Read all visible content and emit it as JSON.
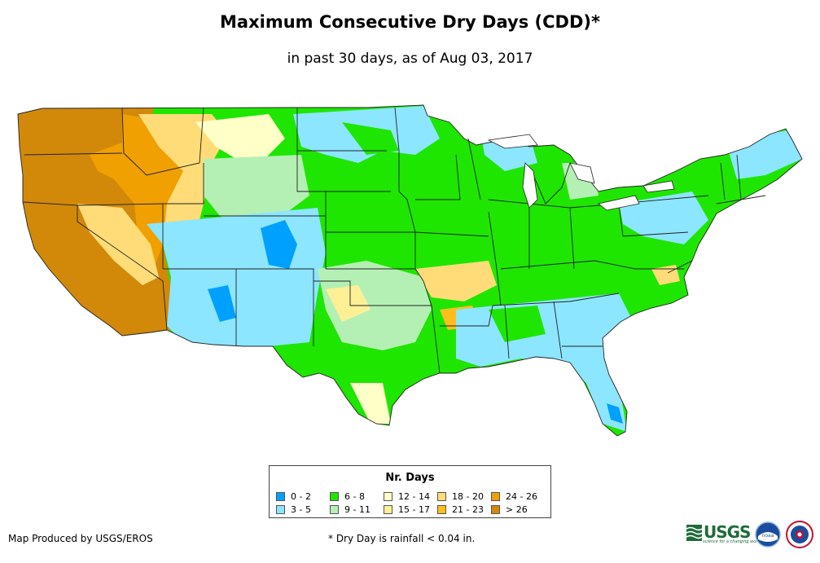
{
  "header": {
    "title": "Maximum Consecutive Dry Days (CDD)*",
    "subtitle": "in past 30 days, as of Aug 03, 2017"
  },
  "legend": {
    "title": "Nr. Days",
    "items": [
      {
        "label": "0 - 2",
        "color": "#00a0ff"
      },
      {
        "label": "3 - 5",
        "color": "#8ce6ff"
      },
      {
        "label": "6 - 8",
        "color": "#1ee600"
      },
      {
        "label": "9 - 11",
        "color": "#b4f0b4"
      },
      {
        "label": "12 - 14",
        "color": "#ffffc8"
      },
      {
        "label": "15 - 17",
        "color": "#fff096"
      },
      {
        "label": "18 - 20",
        "color": "#ffdc78"
      },
      {
        "label": "21 - 23",
        "color": "#ffbe1e"
      },
      {
        "label": "24 - 26",
        "color": "#f0a000"
      },
      {
        "label": "> 26",
        "color": "#d2890a"
      }
    ]
  },
  "footer": {
    "producer": "Map Produced by USGS/EROS",
    "note": "* Dry Day is rainfall < 0.04 in."
  },
  "logos": {
    "usgs_text": "USGS",
    "usgs_tagline": "science for a changing world",
    "noaa_text": "noaa"
  }
}
